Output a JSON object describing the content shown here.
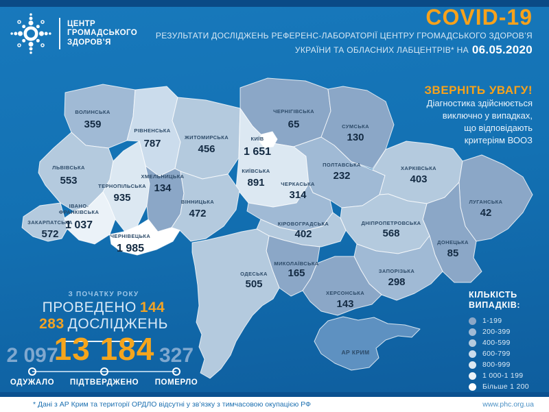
{
  "header": {
    "logo_lines": [
      "ЦЕНТР",
      "ГРОМАДСЬКОГО",
      "ЗДОРОВ’Я"
    ],
    "title": "COVID-19",
    "subtitle_line1": "РЕЗУЛЬТАТИ ДОСЛІДЖЕНЬ РЕФЕРЕНС-ЛАБОРАТОРІЇ ЦЕНТРУ ГРОМАДСЬКОГО ЗДОРОВ’Я",
    "subtitle_line2": "УКРАЇНИ ТА ОБЛАСНИХ ЛАБЦЕНТРІВ* НА",
    "date": "06.05.2020",
    "accent_color": "#F7A21B"
  },
  "notice": {
    "title": "ЗВЕРНІТЬ УВАГУ!",
    "lines": [
      "Діагностика здійснюється",
      "виключно у випадках,",
      "що відповідають",
      "критеріям ВООЗ"
    ]
  },
  "tests": {
    "small_label": "З ПОЧАТКУ РОКУ",
    "prefix": "ПРОВЕДЕНО",
    "count": "144 283",
    "suffix": "ДОСЛІДЖЕНЬ"
  },
  "stats": [
    {
      "id": "recovered",
      "value": "2 097",
      "label": "ОДУЖАЛО"
    },
    {
      "id": "confirmed",
      "value": "13 184",
      "label": "ПІДТВЕРДЖЕНО"
    },
    {
      "id": "deaths",
      "value": "327",
      "label": "ПОМЕРЛО"
    }
  ],
  "legend": {
    "title_lines": [
      "КІЛЬКІСТЬ",
      "ВИПАДКІВ:"
    ],
    "no_data_color": "#5E91C1",
    "items": [
      {
        "label": "1-199",
        "color": "#8BA7C7"
      },
      {
        "label": "200-399",
        "color": "#A0BAD5"
      },
      {
        "label": "400-599",
        "color": "#B4CADE"
      },
      {
        "label": "600-799",
        "color": "#CBDCEC"
      },
      {
        "label": "800-999",
        "color": "#DCE8F2"
      },
      {
        "label": "1 000-1 199",
        "color": "#EBF2F8"
      },
      {
        "label": "Більше 1 200",
        "color": "#FFFFFF"
      }
    ]
  },
  "map": {
    "regions": [
      {
        "id": "volyn",
        "name": "ВОЛИНСЬКА",
        "value": "359",
        "bucket": 1
      },
      {
        "id": "rivne",
        "name": "РІВНЕНСЬКА",
        "value": "787",
        "bucket": 3
      },
      {
        "id": "zhytomyr",
        "name": "ЖИТОМИРСЬКА",
        "value": "456",
        "bucket": 2
      },
      {
        "id": "chernihiv",
        "name": "ЧЕРНІГІВСЬКА",
        "value": "65",
        "bucket": 0
      },
      {
        "id": "sumy",
        "name": "СУМСЬКА",
        "value": "130",
        "bucket": 0
      },
      {
        "id": "kyiv_oblast",
        "name": "КИЇВСЬКА",
        "value": "891",
        "bucket": 4
      },
      {
        "id": "kyiv_city",
        "name": "КИЇВ",
        "value": "1 651",
        "bucket": 6
      },
      {
        "id": "lviv",
        "name": "ЛЬВІВСЬКА",
        "value": "553",
        "bucket": 2
      },
      {
        "id": "ternopil",
        "name": "ТЕРНОПІЛЬСЬКА",
        "value": "935",
        "bucket": 4
      },
      {
        "id": "khmelnytskyi",
        "name": "ХМЕЛЬНИЦЬКА",
        "value": "134",
        "bucket": 0
      },
      {
        "id": "vinnytsia",
        "name": "ВІННИЦЬКА",
        "value": "472",
        "bucket": 2
      },
      {
        "id": "zakarpattia",
        "name": "ЗАКАРПАТСЬКА",
        "value": "572",
        "bucket": 2
      },
      {
        "id": "ivano_frankivsk",
        "name": "ІВАНО-\nФРАНКІВСЬКА",
        "value": "1 037",
        "bucket": 5
      },
      {
        "id": "chernivtsi",
        "name": "ЧЕРНІВЕЦЬКА",
        "value": "1 985",
        "bucket": 6
      },
      {
        "id": "cherkasy",
        "name": "ЧЕРКАСЬКА",
        "value": "314",
        "bucket": 1
      },
      {
        "id": "poltava",
        "name": "ПОЛТАВСЬКА",
        "value": "232",
        "bucket": 1
      },
      {
        "id": "kharkiv",
        "name": "ХАРКІВСЬКА",
        "value": "403",
        "bucket": 2
      },
      {
        "id": "luhansk",
        "name": "ЛУГАНСЬКА",
        "value": "42",
        "bucket": 0
      },
      {
        "id": "donetsk",
        "name": "ДОНЕЦЬКА",
        "value": "85",
        "bucket": 0
      },
      {
        "id": "dnipro",
        "name": "ДНІПРОПЕТРОВСЬКА",
        "value": "568",
        "bucket": 2
      },
      {
        "id": "zaporizhzhia",
        "name": "ЗАПОРІЗЬКА",
        "value": "298",
        "bucket": 1
      },
      {
        "id": "kirovohrad",
        "name": "КІРОВОГРАДСЬКА",
        "value": "402",
        "bucket": 2
      },
      {
        "id": "mykolaiv",
        "name": "МИКОЛАЇВСЬКА",
        "value": "165",
        "bucket": 0
      },
      {
        "id": "odesa",
        "name": "ОДЕСЬКА",
        "value": "505",
        "bucket": 2
      },
      {
        "id": "kherson",
        "name": "ХЕРСОНСЬКА",
        "value": "143",
        "bucket": 0
      },
      {
        "id": "crimea",
        "name": "АР КРИМ",
        "value": "",
        "bucket": null
      }
    ]
  },
  "footer": {
    "note": "* Дані з АР Крим та території ОРДЛО відсутні у зв’язку з тимчасовою окупацією РФ",
    "url": "www.phc.org.ua"
  }
}
